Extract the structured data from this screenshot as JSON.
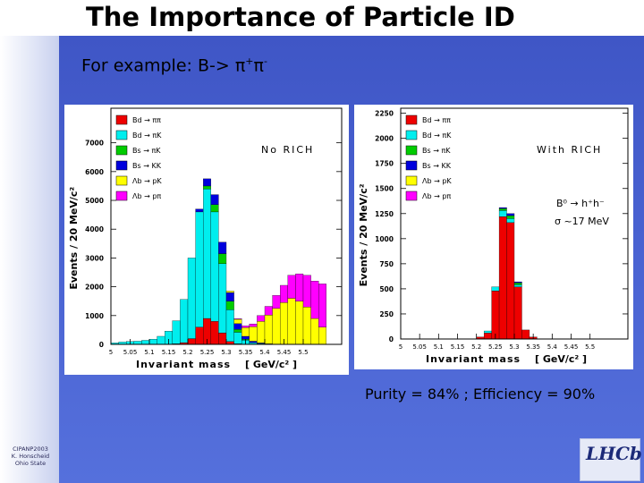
{
  "slide": {
    "title": "The Importance of Particle ID",
    "subtitle_prefix": "For example: B-> ",
    "subtitle_pi": "π",
    "subtitle_plus": "+",
    "subtitle_minus": "-",
    "purity_text": "Purity = 84% ; Efficiency = 90%",
    "footer_lines": [
      "CIPANP2003",
      "K. Honscheid",
      "Ohio State"
    ],
    "logo_text": "LHCb"
  },
  "colors": {
    "red": "#ee0000",
    "cyan": "#00eeee",
    "green": "#00cc00",
    "blue": "#0000dd",
    "yellow": "#ffff00",
    "magenta": "#ff00ff"
  },
  "chart_data": [
    {
      "type": "bar",
      "stacked": true,
      "title": "No RICH",
      "xlabel": "Invariant mass",
      "xunit": "[ GeV/c² ]",
      "ylabel": "Events / 20 MeV/c²",
      "xlim": [
        5.0,
        5.6
      ],
      "ylim": [
        0,
        8200
      ],
      "xticks": [
        "5",
        "5.05",
        "5.1",
        "5.15",
        "5.2",
        "5.25",
        "5.3",
        "5.35",
        "5.4",
        "5.45",
        "5.5"
      ],
      "xtick_values": [
        5.0,
        5.05,
        5.1,
        5.15,
        5.2,
        5.25,
        5.3,
        5.35,
        5.4,
        5.45,
        5.5
      ],
      "yticks": [
        0,
        1000,
        2000,
        3000,
        4000,
        5000,
        6000,
        7000
      ],
      "ytick_labels": [
        "0",
        "1000",
        "2000",
        "3000",
        "4000",
        "5000",
        "6000",
        "7000"
      ],
      "legend_position": "top-left",
      "x": [
        5.01,
        5.03,
        5.05,
        5.07,
        5.09,
        5.11,
        5.13,
        5.15,
        5.17,
        5.19,
        5.21,
        5.23,
        5.25,
        5.27,
        5.29,
        5.31,
        5.33,
        5.35,
        5.37,
        5.39,
        5.41,
        5.43,
        5.45,
        5.47,
        5.49,
        5.51,
        5.53,
        5.55,
        5.57,
        5.59
      ],
      "series": [
        {
          "name": "Bd → ππ",
          "color": "red",
          "values": [
            0,
            0,
            0,
            0,
            0,
            0,
            0,
            10,
            20,
            60,
            200,
            600,
            900,
            800,
            400,
            100,
            20,
            0,
            0,
            0,
            0,
            0,
            0,
            0,
            0,
            0,
            0,
            0,
            0,
            0
          ]
        },
        {
          "name": "Bd → πK",
          "color": "cyan",
          "values": [
            50,
            80,
            100,
            110,
            140,
            180,
            280,
            450,
            800,
            1500,
            2800,
            4000,
            4500,
            3800,
            2400,
            1100,
            400,
            150,
            60,
            30,
            20,
            0,
            0,
            0,
            0,
            0,
            0,
            0,
            0,
            0
          ]
        },
        {
          "name": "Bs → πK",
          "color": "green",
          "values": [
            0,
            0,
            0,
            0,
            0,
            0,
            0,
            0,
            0,
            0,
            0,
            0,
            100,
            250,
            350,
            300,
            100,
            30,
            0,
            0,
            0,
            0,
            0,
            0,
            0,
            0,
            0,
            0,
            0,
            0
          ]
        },
        {
          "name": "Bs → KK",
          "color": "blue",
          "values": [
            0,
            0,
            0,
            0,
            0,
            0,
            0,
            0,
            0,
            0,
            0,
            100,
            250,
            350,
            400,
            300,
            200,
            100,
            50,
            20,
            0,
            0,
            0,
            0,
            0,
            0,
            0,
            0,
            0,
            0
          ]
        },
        {
          "name": "Λb → pK",
          "color": "yellow",
          "values": [
            0,
            0,
            0,
            0,
            0,
            0,
            0,
            0,
            0,
            0,
            0,
            0,
            0,
            0,
            0,
            50,
            150,
            300,
            500,
            750,
            1000,
            1250,
            1450,
            1600,
            1500,
            1300,
            900,
            600,
            0,
            0
          ]
        },
        {
          "name": "Λb → pπ",
          "color": "magenta",
          "values": [
            0,
            0,
            0,
            0,
            0,
            0,
            0,
            0,
            0,
            0,
            0,
            0,
            0,
            0,
            0,
            0,
            20,
            60,
            100,
            200,
            300,
            450,
            600,
            800,
            950,
            1100,
            1300,
            1500,
            0,
            0
          ]
        }
      ]
    },
    {
      "type": "bar",
      "stacked": true,
      "title": "With RICH",
      "xlabel": "Invariant mass",
      "xunit": "[ GeV/c² ]",
      "ylabel": "Events / 20 MeV/c²",
      "xlim": [
        5.0,
        5.6
      ],
      "ylim": [
        0,
        2300
      ],
      "xticks": [
        "5",
        "5.05",
        "5.1",
        "5.15",
        "5.2",
        "5.25",
        "5.3",
        "5.35",
        "5.4",
        "5.45",
        "5.5"
      ],
      "xtick_values": [
        5.0,
        5.05,
        5.1,
        5.15,
        5.2,
        5.25,
        5.3,
        5.35,
        5.4,
        5.45,
        5.5
      ],
      "yticks": [
        0,
        250,
        500,
        750,
        1000,
        1250,
        1500,
        1750,
        2000,
        2250
      ],
      "ytick_labels": [
        "0",
        "250",
        "500",
        "750",
        "1000",
        "1250",
        "1500",
        "1750",
        "2000",
        "2250"
      ],
      "legend_position": "top-left",
      "annotation_line1": "B⁰ → h⁺h⁻",
      "annotation_line2": "σ ~17 MeV",
      "x": [
        5.01,
        5.03,
        5.05,
        5.07,
        5.09,
        5.11,
        5.13,
        5.15,
        5.17,
        5.19,
        5.21,
        5.23,
        5.25,
        5.27,
        5.29,
        5.31,
        5.33,
        5.35,
        5.37,
        5.39,
        5.41,
        5.43,
        5.45,
        5.47,
        5.49,
        5.51,
        5.53,
        5.55,
        5.57,
        5.59
      ],
      "series": [
        {
          "name": "Bd → ππ",
          "color": "red",
          "values": [
            0,
            0,
            0,
            0,
            0,
            0,
            0,
            0,
            0,
            0,
            20,
            60,
            480,
            1220,
            1160,
            520,
            90,
            20,
            0,
            0,
            0,
            0,
            0,
            0,
            0,
            0,
            0,
            0,
            0,
            0
          ]
        },
        {
          "name": "Bd → πK",
          "color": "cyan",
          "values": [
            0,
            0,
            0,
            0,
            0,
            0,
            0,
            0,
            0,
            0,
            0,
            20,
            40,
            60,
            40,
            20,
            0,
            0,
            0,
            0,
            0,
            0,
            0,
            0,
            0,
            0,
            0,
            0,
            0,
            0
          ]
        },
        {
          "name": "Bs → πK",
          "color": "green",
          "values": [
            0,
            0,
            0,
            0,
            0,
            0,
            0,
            0,
            0,
            0,
            0,
            0,
            0,
            20,
            30,
            20,
            0,
            0,
            0,
            0,
            0,
            0,
            0,
            0,
            0,
            0,
            0,
            0,
            0,
            0
          ]
        },
        {
          "name": "Bs → KK",
          "color": "blue",
          "values": [
            0,
            0,
            0,
            0,
            0,
            0,
            0,
            0,
            0,
            0,
            0,
            0,
            0,
            10,
            20,
            10,
            0,
            0,
            0,
            0,
            0,
            0,
            0,
            0,
            0,
            0,
            0,
            0,
            0,
            0
          ]
        },
        {
          "name": "Λb → pK",
          "color": "yellow",
          "values": [
            0,
            0,
            0,
            0,
            0,
            0,
            0,
            0,
            0,
            0,
            0,
            0,
            0,
            0,
            0,
            0,
            0,
            0,
            0,
            0,
            0,
            0,
            0,
            0,
            0,
            0,
            0,
            0,
            0,
            0
          ]
        },
        {
          "name": "Λb → pπ",
          "color": "magenta",
          "values": [
            0,
            0,
            0,
            0,
            0,
            0,
            0,
            0,
            0,
            0,
            0,
            0,
            0,
            0,
            0,
            0,
            0,
            0,
            0,
            0,
            0,
            0,
            0,
            0,
            0,
            0,
            0,
            0,
            0,
            0
          ]
        }
      ]
    }
  ]
}
